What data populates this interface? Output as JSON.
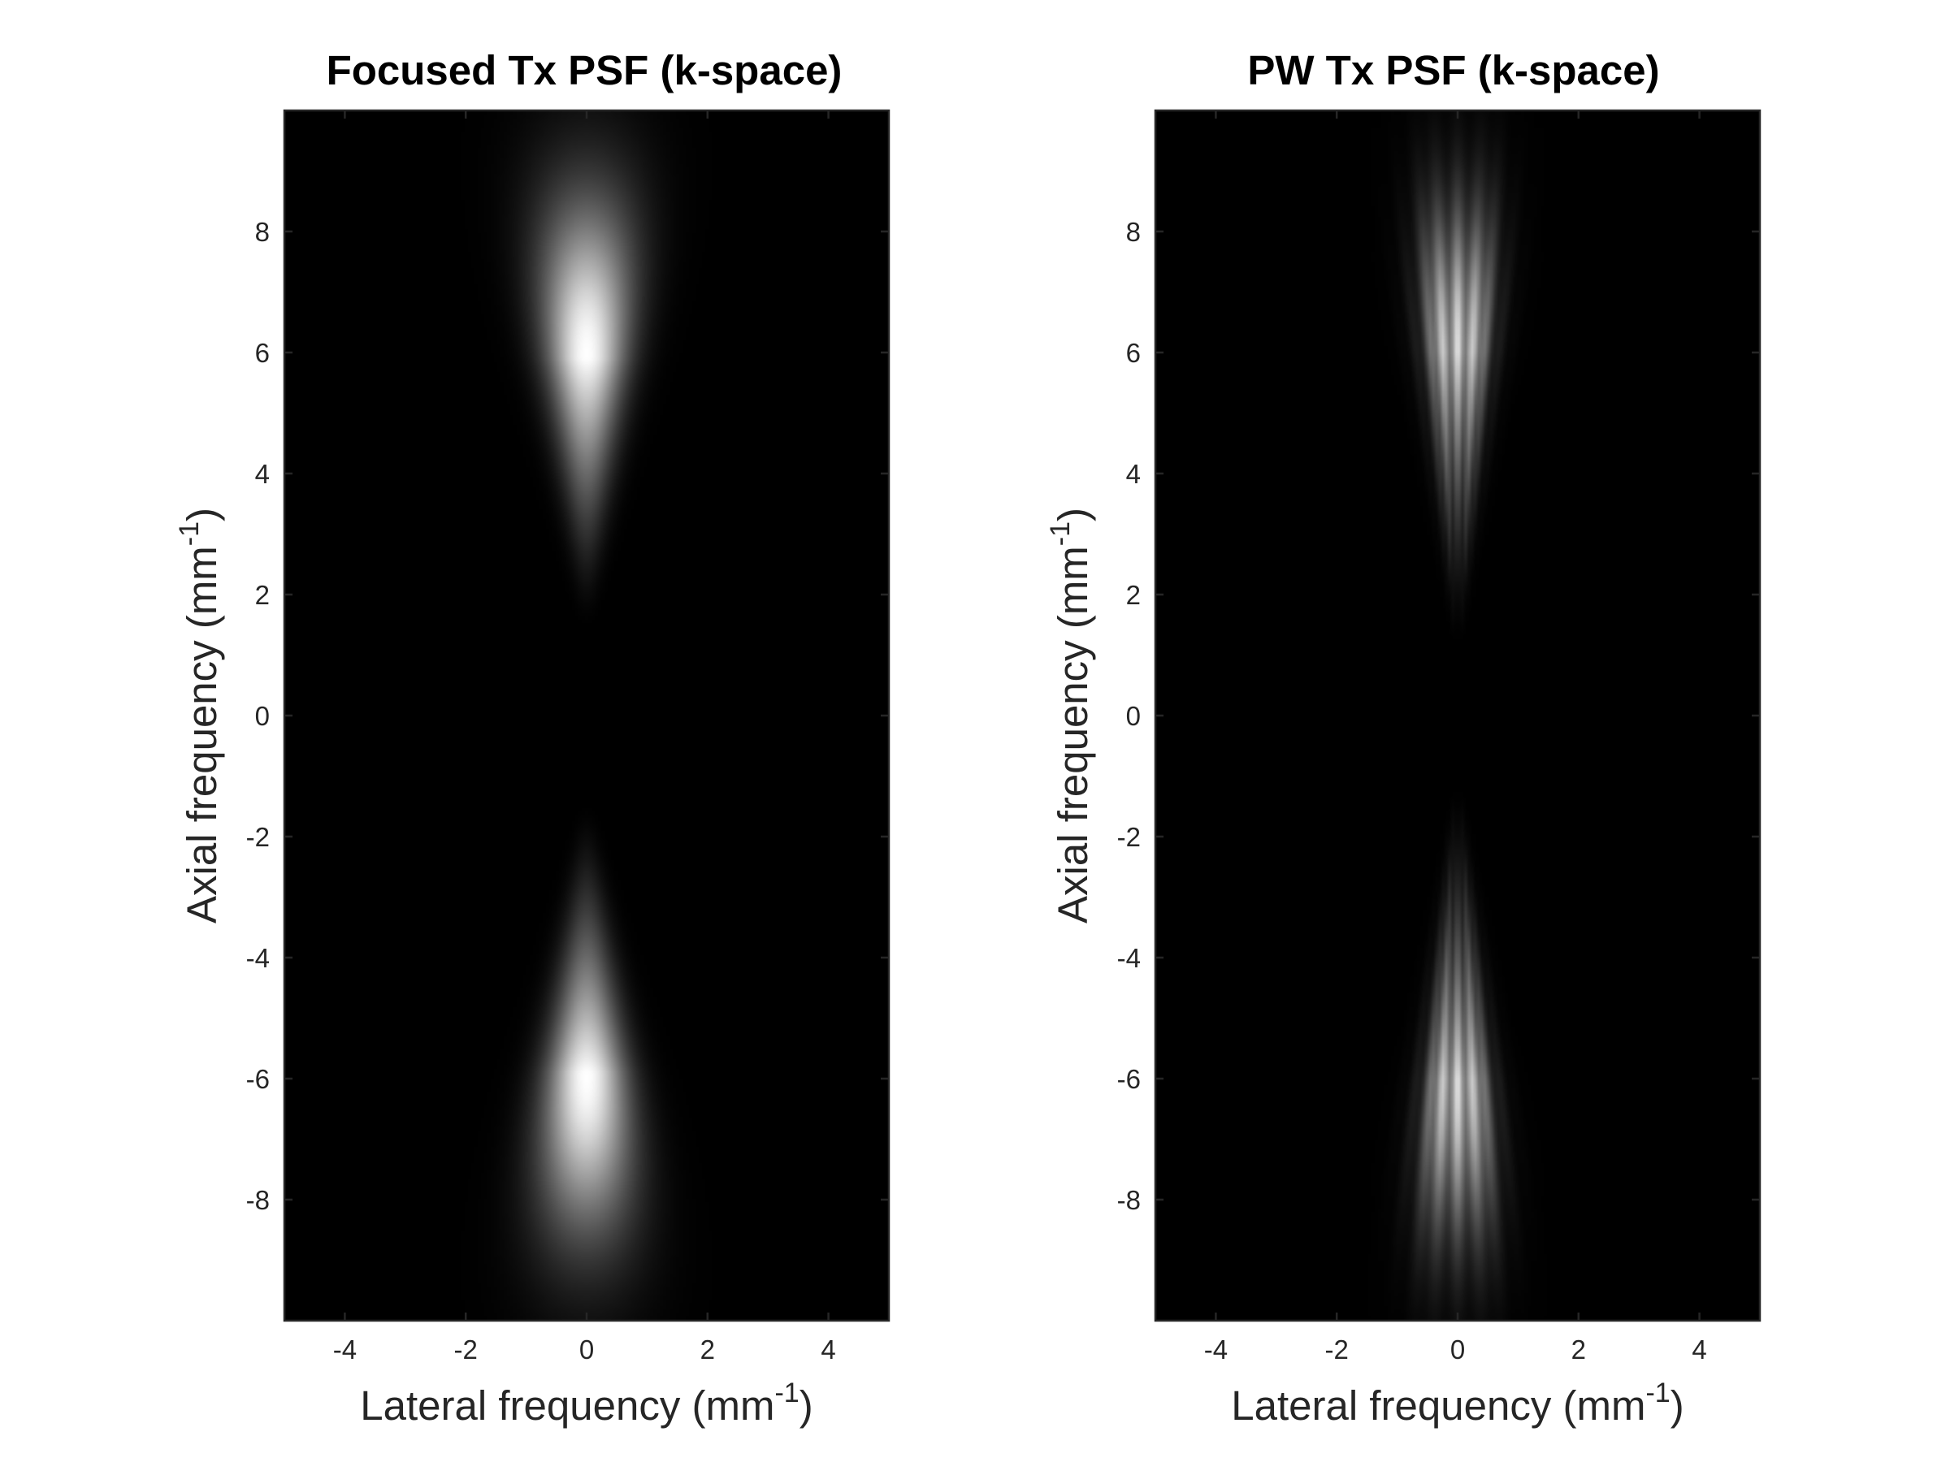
{
  "chart_data": [
    {
      "type": "heatmap",
      "title": "Focused Tx PSF (k-space)",
      "xlabel": {
        "base": "Lateral frequency (mm",
        "sup": "-1",
        "end": ")"
      },
      "ylabel": {
        "base": "Axial frequency (mm",
        "sup": "-1",
        "end": ")"
      },
      "xlim": [
        -5,
        5
      ],
      "ylim": [
        -10,
        10
      ],
      "xticks": [
        -4,
        -2,
        0,
        2,
        4
      ],
      "yticks": [
        -8,
        -6,
        -4,
        -2,
        0,
        2,
        4,
        6,
        8
      ],
      "colormap": "gray",
      "background": "#000000",
      "pattern": "focused",
      "lobes": [
        {
          "center_x": 0,
          "center_y": 5.9,
          "extent_y": [
            1.8,
            9.8
          ],
          "peak_intensity": 1.0
        },
        {
          "center_x": 0,
          "center_y": -5.9,
          "extent_y": [
            -9.8,
            -1.8
          ],
          "peak_intensity": 1.0
        }
      ]
    },
    {
      "type": "heatmap",
      "title": "PW Tx PSF (k-space)",
      "xlabel": {
        "base": "Lateral frequency (mm",
        "sup": "-1",
        "end": ")"
      },
      "ylabel": {
        "base": "Axial frequency (mm",
        "sup": "-1",
        "end": ")"
      },
      "xlim": [
        -5,
        5
      ],
      "ylim": [
        -10,
        10
      ],
      "xticks": [
        -4,
        -2,
        0,
        2,
        4
      ],
      "yticks": [
        -8,
        -6,
        -4,
        -2,
        0,
        2,
        4,
        6,
        8
      ],
      "colormap": "gray",
      "background": "#000000",
      "pattern": "plane-wave",
      "lobes": [
        {
          "center_x": 0,
          "center_y": 6.0,
          "extent_y": [
            1.5,
            9.5
          ],
          "peak_intensity": 1.0
        },
        {
          "center_x": 0,
          "center_y": -6.0,
          "extent_y": [
            -9.8,
            -1.5
          ],
          "peak_intensity": 1.0
        }
      ]
    }
  ]
}
